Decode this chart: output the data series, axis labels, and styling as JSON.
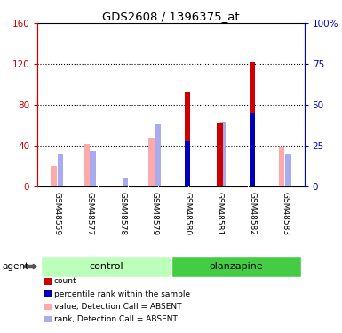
{
  "title": "GDS2608 / 1396375_at",
  "samples": [
    "GSM48559",
    "GSM48577",
    "GSM48578",
    "GSM48579",
    "GSM48580",
    "GSM48581",
    "GSM48582",
    "GSM48583"
  ],
  "groups": [
    "control",
    "control",
    "control",
    "control",
    "olanzapine",
    "olanzapine",
    "olanzapine",
    "olanzapine"
  ],
  "ylim_left": [
    0,
    160
  ],
  "ylim_right": [
    0,
    100
  ],
  "yticks_left": [
    0,
    40,
    80,
    120,
    160
  ],
  "yticks_right": [
    0,
    25,
    50,
    75,
    100
  ],
  "red_bars": [
    0,
    0,
    0,
    0,
    92,
    62,
    122,
    0
  ],
  "blue_bars": [
    0,
    0,
    0,
    0,
    28,
    0,
    45,
    0
  ],
  "pink_bars": [
    20,
    42,
    0,
    48,
    0,
    0,
    0,
    38
  ],
  "light_blue_bars": [
    20,
    22,
    5,
    38,
    0,
    40,
    0,
    20
  ],
  "bar_width": 0.18,
  "left_axis_color": "#cc0000",
  "right_axis_color": "#0000bb",
  "plot_bg": "#ffffff",
  "label_bg": "#c8c8c8",
  "ctrl_color": "#bbffbb",
  "olanz_color": "#44cc44",
  "legend_items": [
    {
      "label": "count",
      "color": "#cc0000"
    },
    {
      "label": "percentile rank within the sample",
      "color": "#0000bb"
    },
    {
      "label": "value, Detection Call = ABSENT",
      "color": "#ffaaaa"
    },
    {
      "label": "rank, Detection Call = ABSENT",
      "color": "#aaaaee"
    }
  ]
}
